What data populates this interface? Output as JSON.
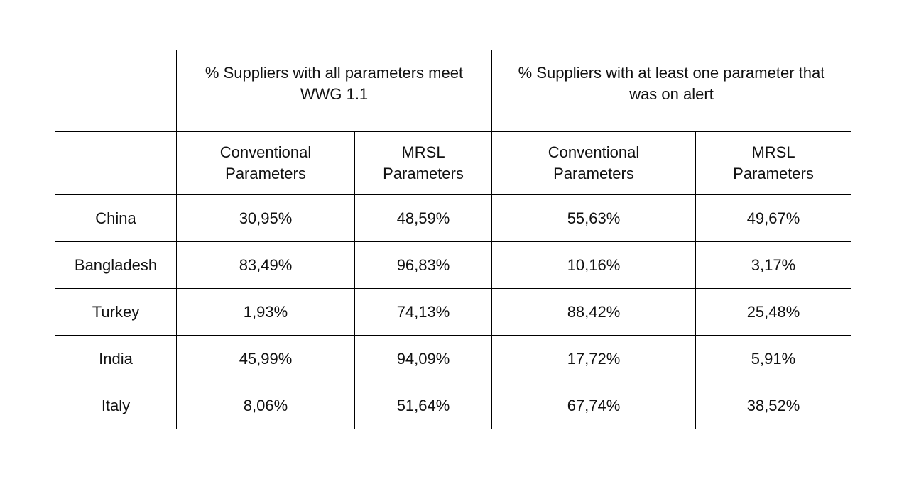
{
  "table": {
    "groups": [
      "% Suppliers with all parameters meet WWG 1.1",
      "% Suppliers with at least one parameter that was on alert"
    ],
    "subheaders": [
      "Conventional Parameters",
      "MRSL Parameters",
      "Conventional Parameters",
      "MRSL Parameters"
    ],
    "rows": [
      [
        "China",
        "30,95%",
        "48,59%",
        "55,63%",
        "49,67%"
      ],
      [
        "Bangladesh",
        "83,49%",
        "96,83%",
        "10,16%",
        "3,17%"
      ],
      [
        "Turkey",
        "1,93%",
        "74,13%",
        "88,42%",
        "25,48%"
      ],
      [
        "India",
        "45,99%",
        "94,09%",
        "17,72%",
        "5,91%"
      ],
      [
        "Italy",
        "8,06%",
        "51,64%",
        "67,74%",
        "38,52%"
      ]
    ]
  }
}
